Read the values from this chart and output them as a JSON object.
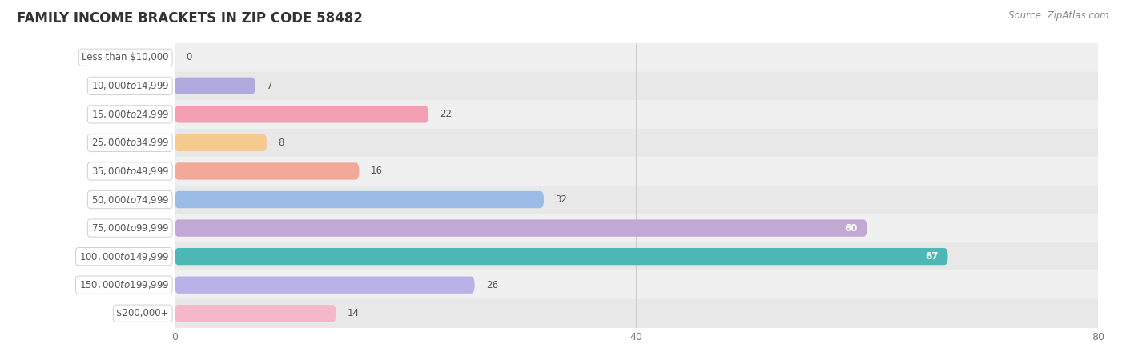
{
  "title": "FAMILY INCOME BRACKETS IN ZIP CODE 58482",
  "source": "Source: ZipAtlas.com",
  "categories": [
    "Less than $10,000",
    "$10,000 to $14,999",
    "$15,000 to $24,999",
    "$25,000 to $34,999",
    "$35,000 to $49,999",
    "$50,000 to $74,999",
    "$75,000 to $99,999",
    "$100,000 to $149,999",
    "$150,000 to $199,999",
    "$200,000+"
  ],
  "values": [
    0,
    7,
    22,
    8,
    16,
    32,
    60,
    67,
    26,
    14
  ],
  "bar_colors": [
    "#5ecece",
    "#b0aadf",
    "#f59fb5",
    "#f6ca8e",
    "#f1a99a",
    "#9cbce8",
    "#c2a8d4",
    "#4db8b5",
    "#b9b2e8",
    "#f5b8cb"
  ],
  "bg_row_colors": [
    "#f0f0f0",
    "#e8e8e8"
  ],
  "xlim_max": 80,
  "xticks": [
    0,
    40,
    80
  ],
  "title_fontsize": 12,
  "label_fontsize": 8.5,
  "value_fontsize": 8.5,
  "bar_height": 0.6,
  "figsize": [
    14.06,
    4.5
  ],
  "pill_bg": "#ffffff",
  "pill_text_color": "#555555",
  "value_text_color_outside": "#555555",
  "value_text_color_inside": "#ffffff"
}
